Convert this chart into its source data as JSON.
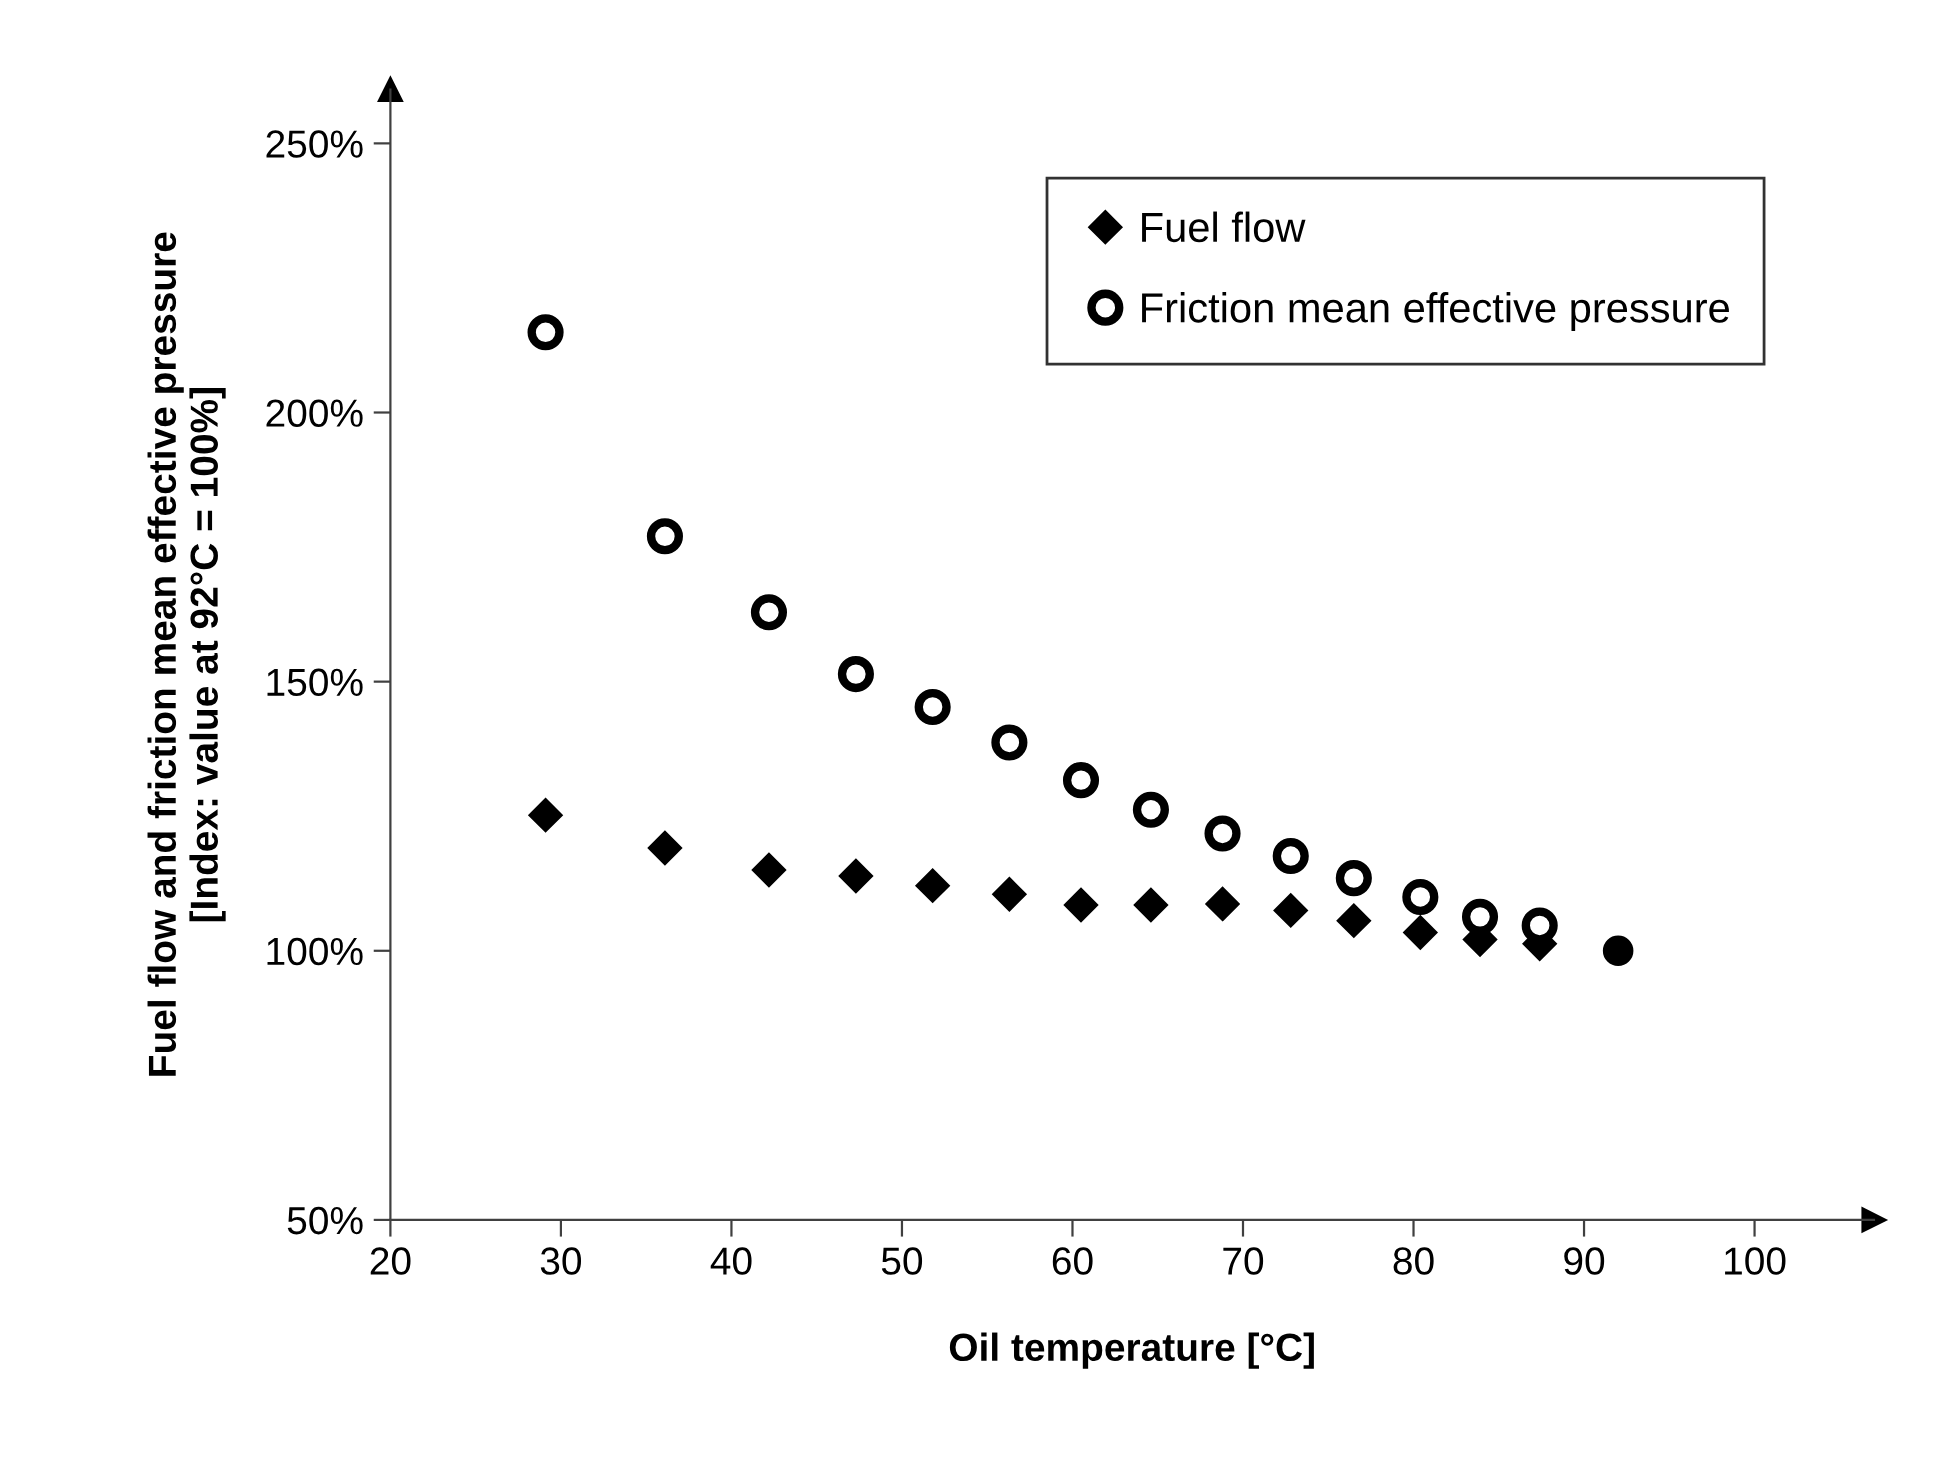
{
  "chart_data": {
    "type": "scatter",
    "xlabel": "Oil temperature [°C]",
    "ylabel": "Fuel flow and friction mean effective pressure\n[Index: value at 92°C = 100%]",
    "xlim": [
      20,
      107
    ],
    "xticks": [
      20,
      30,
      40,
      50,
      60,
      70,
      80,
      90,
      100
    ],
    "ylim": [
      50,
      260
    ],
    "yticks": [
      {
        "value": 50,
        "label": "50%"
      },
      {
        "value": 100,
        "label": "100%"
      },
      {
        "value": 150,
        "label": "150%"
      },
      {
        "value": 200,
        "label": "200%"
      },
      {
        "value": 250,
        "label": "250%"
      }
    ],
    "grid": false,
    "legend": "top right",
    "series": [
      {
        "name": "Fuel flow",
        "color": "#000000",
        "marker": "diamond",
        "x": [
          29.1,
          36.1,
          42.2,
          47.3,
          51.8,
          56.3,
          60.5,
          64.6,
          68.8,
          72.8,
          76.5,
          80.4,
          83.9,
          87.4
        ],
        "values": [
          125.2,
          119.1,
          115.0,
          113.9,
          112.1,
          110.5,
          108.5,
          108.5,
          108.7,
          107.5,
          105.6,
          103.4,
          102.1,
          101.3
        ]
      },
      {
        "name": "Friction mean effective pressure",
        "color": "#000000",
        "marker": "circle",
        "x": [
          29.1,
          36.1,
          42.2,
          47.3,
          51.8,
          56.3,
          60.5,
          64.6,
          68.8,
          72.8,
          76.5,
          80.4,
          83.9,
          87.4
        ],
        "values": [
          214.9,
          177.0,
          162.9,
          151.4,
          145.3,
          138.7,
          131.7,
          126.2,
          121.8,
          117.6,
          113.5,
          110.0,
          106.3,
          104.7
        ]
      },
      {
        "color": "#000000",
        "marker": "circle",
        "x": [
          92
        ],
        "values": [
          100
        ]
      }
    ]
  }
}
